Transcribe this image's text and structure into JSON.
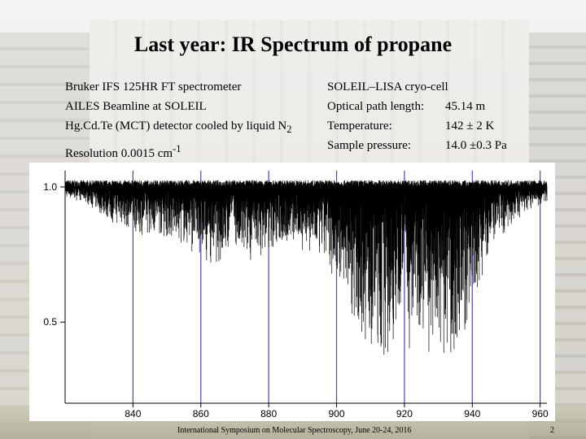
{
  "slide": {
    "title": "Last  year: IR Spectrum of propane",
    "left_info": [
      "Bruker IFS 125HR FT spectrometer",
      "AILES Beamline at SOLEIL",
      "Hg.Cd.Te (MCT) detector cooled by liquid N",
      "Resolution 0.0015 cm"
    ],
    "left_info_sub": "2",
    "left_info_sup": "-1",
    "right_info": {
      "heading": "SOLEIL–LISA cryo-cell",
      "rows": [
        {
          "key": "Optical path length:",
          "value": "45.14 m"
        },
        {
          "key": "Temperature:",
          "value": "142 ± 2 K"
        },
        {
          "key": "Sample pressure:",
          "value": "14.0 ±0.3 Pa"
        }
      ]
    },
    "footer": "International Symposium on Molecular Spectroscopy, June 20-24, 2016",
    "page_number": "2"
  },
  "chart_data": {
    "type": "line",
    "title": "",
    "xlabel": "",
    "ylabel": "",
    "xlim": [
      820,
      962
    ],
    "ylim": [
      0.2,
      1.06
    ],
    "x_ticks": [
      840,
      860,
      880,
      900,
      920,
      940,
      960
    ],
    "x_tick_labels": [
      "840",
      "860",
      "880",
      "900",
      "920",
      "940",
      "960"
    ],
    "y_ticks": [
      1.0,
      0.5
    ],
    "y_tick_labels": [
      "1.0",
      "0.5"
    ],
    "grid": "vertical",
    "grid_color": "#4a4aa0",
    "series_color": "#000000",
    "series": [
      {
        "envelope_x": [
          820,
          826,
          830,
          834,
          838,
          842,
          846,
          850,
          854,
          858,
          862,
          866,
          868,
          869,
          870,
          871,
          872,
          874,
          878,
          882,
          886,
          890,
          894,
          898,
          902,
          904,
          906,
          908,
          910,
          912,
          914,
          916,
          918,
          919,
          920,
          921,
          921.5,
          922,
          922.5,
          923,
          924,
          926,
          928,
          930,
          932,
          934,
          936,
          938,
          940,
          942,
          944,
          948,
          952,
          956,
          962
        ],
        "envelope_min": [
          0.96,
          0.94,
          0.9,
          0.86,
          0.84,
          0.82,
          0.82,
          0.8,
          0.78,
          0.75,
          0.72,
          0.7,
          0.72,
          0.9,
          0.78,
          0.72,
          0.7,
          0.72,
          0.74,
          0.76,
          0.78,
          0.76,
          0.72,
          0.68,
          0.6,
          0.55,
          0.48,
          0.42,
          0.38,
          0.35,
          0.33,
          0.34,
          0.42,
          0.6,
          0.72,
          0.55,
          0.3,
          0.22,
          0.32,
          0.5,
          0.5,
          0.42,
          0.36,
          0.33,
          0.32,
          0.33,
          0.36,
          0.42,
          0.52,
          0.62,
          0.72,
          0.8,
          0.86,
          0.9,
          0.94
        ]
      }
    ]
  }
}
